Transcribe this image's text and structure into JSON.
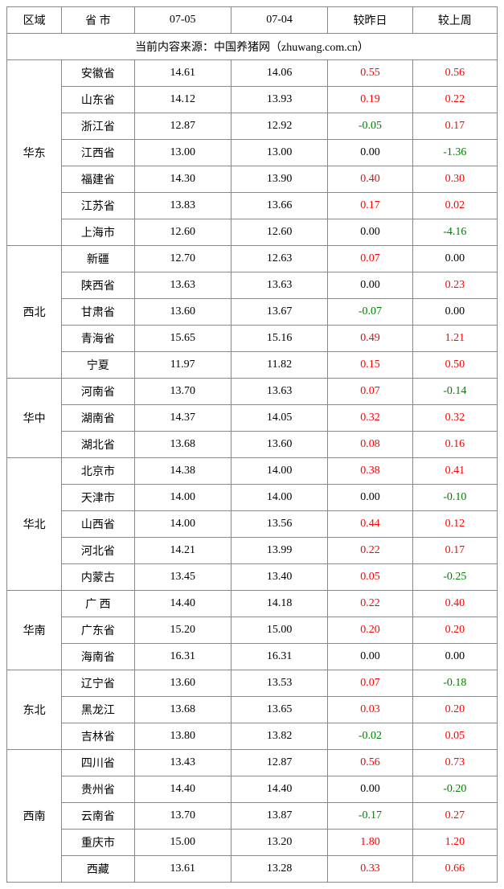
{
  "colors": {
    "pos": "#ff0000",
    "neg": "#008000",
    "zero": "#000000",
    "border": "#888888",
    "bg": "#ffffff"
  },
  "headers": {
    "region": "区域",
    "province": "省 市",
    "date1": "07-05",
    "date2": "07-04",
    "vs_yday": "较昨日",
    "vs_week": "较上周"
  },
  "source_line": "当前内容来源：中国养猪网（zhuwang.com.cn）",
  "regions": [
    {
      "name": "华东",
      "rows": [
        {
          "prov": "安徽省",
          "d1": "14.61",
          "d2": "14.06",
          "yday": "0.55",
          "wk": "0.56"
        },
        {
          "prov": "山东省",
          "d1": "14.12",
          "d2": "13.93",
          "yday": "0.19",
          "wk": "0.22"
        },
        {
          "prov": "浙江省",
          "d1": "12.87",
          "d2": "12.92",
          "yday": "-0.05",
          "wk": "0.17"
        },
        {
          "prov": "江西省",
          "d1": "13.00",
          "d2": "13.00",
          "yday": "0.00",
          "wk": "-1.36"
        },
        {
          "prov": "福建省",
          "d1": "14.30",
          "d2": "13.90",
          "yday": "0.40",
          "wk": "0.30"
        },
        {
          "prov": "江苏省",
          "d1": "13.83",
          "d2": "13.66",
          "yday": "0.17",
          "wk": "0.02"
        },
        {
          "prov": "上海市",
          "d1": "12.60",
          "d2": "12.60",
          "yday": "0.00",
          "wk": "-4.16"
        }
      ]
    },
    {
      "name": "西北",
      "rows": [
        {
          "prov": "新疆",
          "d1": "12.70",
          "d2": "12.63",
          "yday": "0.07",
          "wk": "0.00"
        },
        {
          "prov": "陕西省",
          "d1": "13.63",
          "d2": "13.63",
          "yday": "0.00",
          "wk": "0.23"
        },
        {
          "prov": "甘肃省",
          "d1": "13.60",
          "d2": "13.67",
          "yday": "-0.07",
          "wk": "0.00"
        },
        {
          "prov": "青海省",
          "d1": "15.65",
          "d2": "15.16",
          "yday": "0.49",
          "wk": "1.21"
        },
        {
          "prov": "宁夏",
          "d1": "11.97",
          "d2": "11.82",
          "yday": "0.15",
          "wk": "0.50"
        }
      ]
    },
    {
      "name": "华中",
      "rows": [
        {
          "prov": "河南省",
          "d1": "13.70",
          "d2": "13.63",
          "yday": "0.07",
          "wk": "-0.14"
        },
        {
          "prov": "湖南省",
          "d1": "14.37",
          "d2": "14.05",
          "yday": "0.32",
          "wk": "0.32"
        },
        {
          "prov": "湖北省",
          "d1": "13.68",
          "d2": "13.60",
          "yday": "0.08",
          "wk": "0.16"
        }
      ]
    },
    {
      "name": "华北",
      "rows": [
        {
          "prov": "北京市",
          "d1": "14.38",
          "d2": "14.00",
          "yday": "0.38",
          "wk": "0.41"
        },
        {
          "prov": "天津市",
          "d1": "14.00",
          "d2": "14.00",
          "yday": "0.00",
          "wk": "-0.10"
        },
        {
          "prov": "山西省",
          "d1": "14.00",
          "d2": "13.56",
          "yday": "0.44",
          "wk": "0.12"
        },
        {
          "prov": "河北省",
          "d1": "14.21",
          "d2": "13.99",
          "yday": "0.22",
          "wk": "0.17"
        },
        {
          "prov": "内蒙古",
          "d1": "13.45",
          "d2": "13.40",
          "yday": "0.05",
          "wk": "-0.25"
        }
      ]
    },
    {
      "name": "华南",
      "rows": [
        {
          "prov": "广 西",
          "d1": "14.40",
          "d2": "14.18",
          "yday": "0.22",
          "wk": "0.40"
        },
        {
          "prov": "广东省",
          "d1": "15.20",
          "d2": "15.00",
          "yday": "0.20",
          "wk": "0.20"
        },
        {
          "prov": "海南省",
          "d1": "16.31",
          "d2": "16.31",
          "yday": "0.00",
          "wk": "0.00"
        }
      ]
    },
    {
      "name": "东北",
      "rows": [
        {
          "prov": "辽宁省",
          "d1": "13.60",
          "d2": "13.53",
          "yday": "0.07",
          "wk": "-0.18"
        },
        {
          "prov": "黑龙江",
          "d1": "13.68",
          "d2": "13.65",
          "yday": "0.03",
          "wk": "0.20"
        },
        {
          "prov": "吉林省",
          "d1": "13.80",
          "d2": "13.82",
          "yday": "-0.02",
          "wk": "0.05"
        }
      ]
    },
    {
      "name": "西南",
      "rows": [
        {
          "prov": "四川省",
          "d1": "13.43",
          "d2": "12.87",
          "yday": "0.56",
          "wk": "0.73"
        },
        {
          "prov": "贵州省",
          "d1": "14.40",
          "d2": "14.40",
          "yday": "0.00",
          "wk": "-0.20"
        },
        {
          "prov": "云南省",
          "d1": "13.70",
          "d2": "13.87",
          "yday": "-0.17",
          "wk": "0.27"
        },
        {
          "prov": "重庆市",
          "d1": "15.00",
          "d2": "13.20",
          "yday": "1.80",
          "wk": "1.20"
        },
        {
          "prov": "西藏",
          "d1": "13.61",
          "d2": "13.28",
          "yday": "0.33",
          "wk": "0.66"
        }
      ]
    }
  ]
}
